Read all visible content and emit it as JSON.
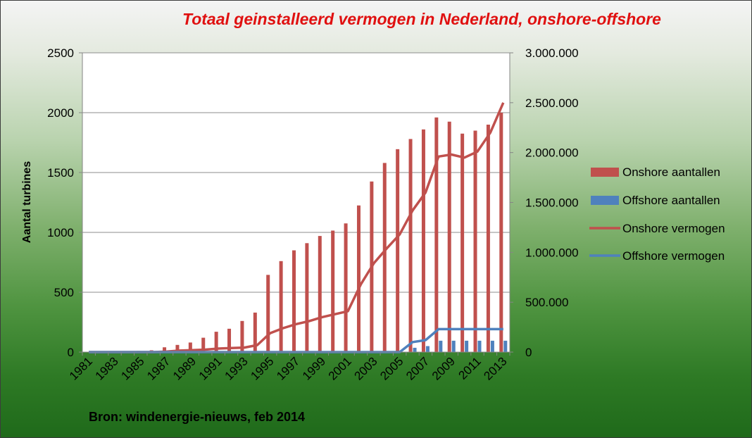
{
  "chart_data": {
    "type": "bar",
    "title": "Totaal geinstalleerd  vermogen in Nederland, onshore-offshore",
    "ylabel": "Aantal turbines",
    "ylabel_right": "",
    "xlabel": "",
    "source": "Bron: windenergie-nieuws, feb 2014",
    "categories": [
      1981,
      1982,
      1983,
      1984,
      1985,
      1986,
      1987,
      1988,
      1989,
      1990,
      1991,
      1992,
      1993,
      1994,
      1995,
      1996,
      1997,
      1998,
      1999,
      2000,
      2001,
      2002,
      2003,
      2004,
      2005,
      2006,
      2007,
      2008,
      2009,
      2010,
      2011,
      2012,
      2013
    ],
    "x_tick_labels": [
      "1981",
      "1983",
      "1985",
      "1987",
      "1989",
      "1991",
      "1993",
      "1995",
      "1997",
      "1999",
      "2001",
      "2003",
      "2005",
      "2007",
      "2009",
      "2011",
      "2013"
    ],
    "ylim": [
      0,
      2500
    ],
    "yticks": [
      0,
      500,
      1000,
      1500,
      2000,
      2500
    ],
    "ytick_labels": [
      "0",
      "500",
      "1000",
      "1500",
      "2000",
      "2500"
    ],
    "ylim_right": [
      0,
      3000000
    ],
    "yticks_right": [
      0,
      500000,
      1000000,
      1500000,
      2000000,
      2500000,
      3000000
    ],
    "ytick_labels_right": [
      "0",
      "500.000",
      "1.000.000",
      "1.500.000",
      "2.000.000",
      "2.500.000",
      "3.000.000"
    ],
    "grid": true,
    "legend_position": "right",
    "series": [
      {
        "name": "Onshore aantallen",
        "type": "bar",
        "axis": "left",
        "color": "#c0504d",
        "values": [
          2,
          3,
          5,
          7,
          10,
          15,
          40,
          60,
          80,
          120,
          170,
          195,
          260,
          330,
          645,
          760,
          850,
          910,
          970,
          1015,
          1075,
          1225,
          1425,
          1580,
          1695,
          1780,
          1860,
          1960,
          1925,
          1825,
          1850,
          1900,
          2000
        ]
      },
      {
        "name": "Offshore aantallen",
        "type": "bar",
        "axis": "left",
        "color": "#4f81bd",
        "values": [
          0,
          0,
          0,
          0,
          0,
          0,
          0,
          0,
          0,
          0,
          0,
          0,
          0,
          0,
          0,
          0,
          0,
          0,
          0,
          0,
          0,
          0,
          0,
          0,
          0,
          36,
          50,
          95,
          95,
          95,
          95,
          95,
          95
        ]
      },
      {
        "name": "Onshore vermogen",
        "type": "line",
        "axis": "right",
        "color": "#c0504d",
        "values": [
          0,
          0,
          0,
          0,
          0,
          0,
          5000,
          15000,
          20000,
          25000,
          35000,
          40000,
          45000,
          70000,
          190000,
          240000,
          280000,
          310000,
          350000,
          380000,
          410000,
          680000,
          890000,
          1040000,
          1180000,
          1420000,
          1600000,
          1960000,
          1980000,
          1950000,
          2010000,
          2200000,
          2500000
        ]
      },
      {
        "name": "Offshore vermogen",
        "type": "line",
        "axis": "right",
        "color": "#4f81bd",
        "values": [
          0,
          0,
          0,
          0,
          0,
          0,
          0,
          0,
          0,
          0,
          0,
          0,
          0,
          0,
          0,
          0,
          0,
          0,
          0,
          0,
          0,
          0,
          0,
          0,
          0,
          100000,
          120000,
          230000,
          230000,
          230000,
          230000,
          230000,
          230000
        ]
      }
    ]
  }
}
